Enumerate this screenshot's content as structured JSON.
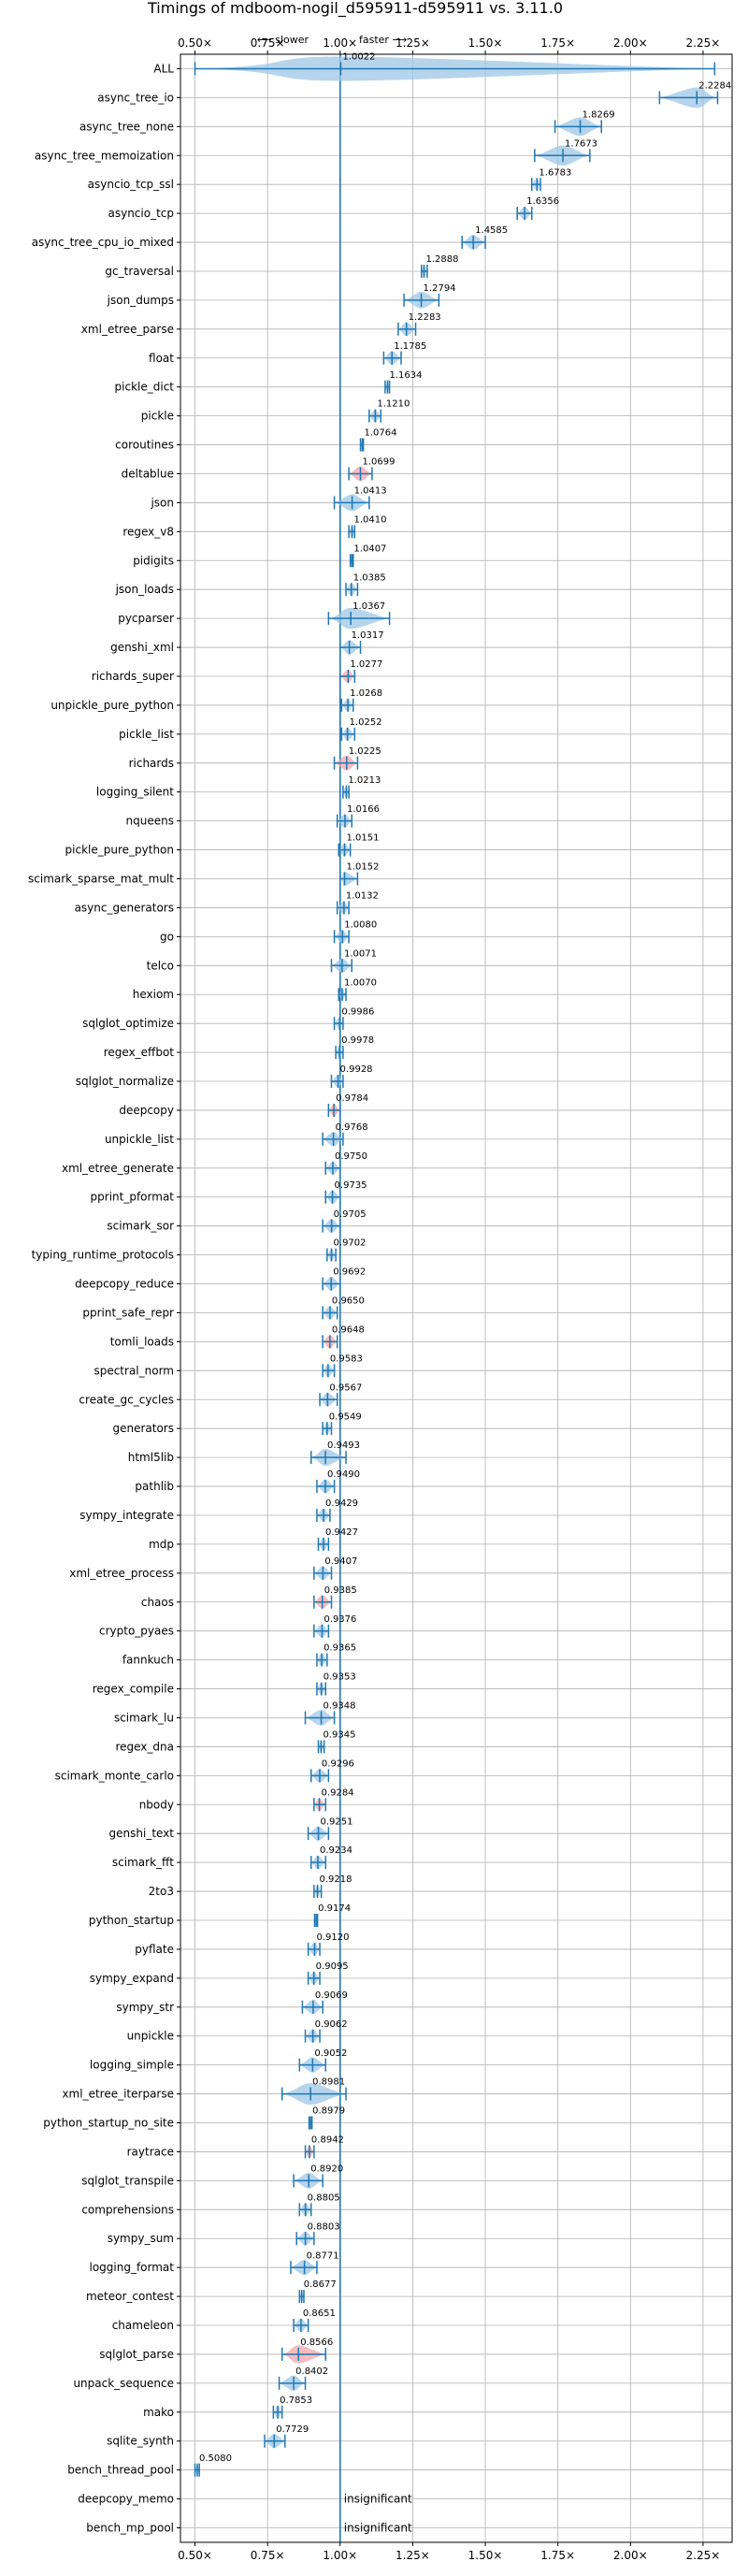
{
  "chart_data": {
    "type": "violin-timing",
    "title": "Timings of mdboom-nogil_d595911-d595911 vs. 3.11.0",
    "direction_slower": "⟵ slower",
    "direction_faster": "faster ⟶",
    "x_ticks": [
      "0.50×",
      "0.75×",
      "1.00×",
      "1.25×",
      "1.50×",
      "1.75×",
      "2.00×",
      "2.25×"
    ],
    "x_tick_values": [
      0.5,
      0.75,
      1.0,
      1.25,
      1.5,
      1.75,
      2.0,
      2.25
    ],
    "xlim": [
      0.45,
      2.35
    ],
    "reference_line": 1.0,
    "grid": true,
    "insignificant_label": "insignificant",
    "benchmarks": [
      {
        "name": "ALL",
        "value": 1.0022,
        "low": 0.5,
        "high": 2.29,
        "label": "1.0022"
      },
      {
        "name": "async_tree_io",
        "value": 2.2284,
        "low": 2.1,
        "high": 2.3,
        "label": "2.2284"
      },
      {
        "name": "async_tree_none",
        "value": 1.8269,
        "low": 1.74,
        "high": 1.9,
        "label": "1.8269"
      },
      {
        "name": "async_tree_memoization",
        "value": 1.7673,
        "low": 1.67,
        "high": 1.86,
        "label": "1.7673"
      },
      {
        "name": "asyncio_tcp_ssl",
        "value": 1.6783,
        "low": 1.66,
        "high": 1.69,
        "label": "1.6783"
      },
      {
        "name": "asyncio_tcp",
        "value": 1.6356,
        "low": 1.61,
        "high": 1.66,
        "label": "1.6356"
      },
      {
        "name": "async_tree_cpu_io_mixed",
        "value": 1.4585,
        "low": 1.42,
        "high": 1.5,
        "label": "1.4585"
      },
      {
        "name": "gc_traversal",
        "value": 1.2888,
        "low": 1.28,
        "high": 1.3,
        "label": "1.2888"
      },
      {
        "name": "json_dumps",
        "value": 1.2794,
        "low": 1.22,
        "high": 1.34,
        "label": "1.2794"
      },
      {
        "name": "xml_etree_parse",
        "value": 1.2283,
        "low": 1.2,
        "high": 1.26,
        "label": "1.2283"
      },
      {
        "name": "float",
        "value": 1.1785,
        "low": 1.15,
        "high": 1.21,
        "label": "1.1785"
      },
      {
        "name": "pickle_dict",
        "value": 1.1634,
        "low": 1.155,
        "high": 1.17,
        "label": "1.1634"
      },
      {
        "name": "pickle",
        "value": 1.121,
        "low": 1.1,
        "high": 1.14,
        "label": "1.1210"
      },
      {
        "name": "coroutines",
        "value": 1.0764,
        "low": 1.07,
        "high": 1.08,
        "label": "1.0764"
      },
      {
        "name": "deltablue",
        "value": 1.0699,
        "low": 1.03,
        "high": 1.11,
        "label": "1.0699"
      },
      {
        "name": "json",
        "value": 1.0413,
        "low": 0.98,
        "high": 1.1,
        "label": "1.0413"
      },
      {
        "name": "regex_v8",
        "value": 1.041,
        "low": 1.03,
        "high": 1.05,
        "label": "1.0410"
      },
      {
        "name": "pidigits",
        "value": 1.0407,
        "low": 1.035,
        "high": 1.045,
        "label": "1.0407"
      },
      {
        "name": "json_loads",
        "value": 1.0385,
        "low": 1.02,
        "high": 1.06,
        "label": "1.0385"
      },
      {
        "name": "pycparser",
        "value": 1.0367,
        "low": 0.96,
        "high": 1.17,
        "label": "1.0367"
      },
      {
        "name": "genshi_xml",
        "value": 1.0317,
        "low": 1.0,
        "high": 1.07,
        "label": "1.0317"
      },
      {
        "name": "richards_super",
        "value": 1.0277,
        "low": 1.0,
        "high": 1.05,
        "label": "1.0277"
      },
      {
        "name": "unpickle_pure_python",
        "value": 1.0268,
        "low": 1.005,
        "high": 1.045,
        "label": "1.0268"
      },
      {
        "name": "pickle_list",
        "value": 1.0252,
        "low": 1.005,
        "high": 1.05,
        "label": "1.0252"
      },
      {
        "name": "richards",
        "value": 1.0225,
        "low": 0.98,
        "high": 1.06,
        "label": "1.0225"
      },
      {
        "name": "logging_silent",
        "value": 1.0213,
        "low": 1.01,
        "high": 1.03,
        "label": "1.0213"
      },
      {
        "name": "nqueens",
        "value": 1.0166,
        "low": 0.99,
        "high": 1.04,
        "label": "1.0166"
      },
      {
        "name": "pickle_pure_python",
        "value": 1.0151,
        "low": 0.995,
        "high": 1.035,
        "label": "1.0151"
      },
      {
        "name": "scimark_sparse_mat_mult",
        "value": 1.0152,
        "low": 1.0,
        "high": 1.06,
        "label": "1.0152"
      },
      {
        "name": "async_generators",
        "value": 1.0132,
        "low": 0.99,
        "high": 1.03,
        "label": "1.0132"
      },
      {
        "name": "go",
        "value": 1.008,
        "low": 0.98,
        "high": 1.03,
        "label": "1.0080"
      },
      {
        "name": "telco",
        "value": 1.0071,
        "low": 0.97,
        "high": 1.04,
        "label": "1.0071"
      },
      {
        "name": "hexiom",
        "value": 1.007,
        "low": 0.995,
        "high": 1.02,
        "label": "1.0070"
      },
      {
        "name": "sqlglot_optimize",
        "value": 0.9986,
        "low": 0.98,
        "high": 1.01,
        "label": "0.9986"
      },
      {
        "name": "regex_effbot",
        "value": 0.9978,
        "low": 0.985,
        "high": 1.01,
        "label": "0.9978"
      },
      {
        "name": "sqlglot_normalize",
        "value": 0.9928,
        "low": 0.97,
        "high": 1.01,
        "label": "0.9928"
      },
      {
        "name": "deepcopy",
        "value": 0.9784,
        "low": 0.96,
        "high": 1.0,
        "label": "0.9784"
      },
      {
        "name": "unpickle_list",
        "value": 0.9768,
        "low": 0.94,
        "high": 1.01,
        "label": "0.9768"
      },
      {
        "name": "xml_etree_generate",
        "value": 0.975,
        "low": 0.95,
        "high": 1.0,
        "label": "0.9750"
      },
      {
        "name": "pprint_pformat",
        "value": 0.9735,
        "low": 0.95,
        "high": 1.0,
        "label": "0.9735"
      },
      {
        "name": "scimark_sor",
        "value": 0.9705,
        "low": 0.94,
        "high": 1.0,
        "label": "0.9705"
      },
      {
        "name": "typing_runtime_protocols",
        "value": 0.9702,
        "low": 0.955,
        "high": 0.985,
        "label": "0.9702"
      },
      {
        "name": "deepcopy_reduce",
        "value": 0.9692,
        "low": 0.94,
        "high": 1.0,
        "label": "0.9692"
      },
      {
        "name": "pprint_safe_repr",
        "value": 0.965,
        "low": 0.94,
        "high": 0.99,
        "label": "0.9650"
      },
      {
        "name": "tomli_loads",
        "value": 0.9648,
        "low": 0.94,
        "high": 0.99,
        "label": "0.9648"
      },
      {
        "name": "spectral_norm",
        "value": 0.9583,
        "low": 0.94,
        "high": 0.98,
        "label": "0.9583"
      },
      {
        "name": "create_gc_cycles",
        "value": 0.9567,
        "low": 0.93,
        "high": 0.99,
        "label": "0.9567"
      },
      {
        "name": "generators",
        "value": 0.9549,
        "low": 0.94,
        "high": 0.97,
        "label": "0.9549"
      },
      {
        "name": "html5lib",
        "value": 0.9493,
        "low": 0.9,
        "high": 1.02,
        "label": "0.9493"
      },
      {
        "name": "pathlib",
        "value": 0.949,
        "low": 0.92,
        "high": 0.98,
        "label": "0.9490"
      },
      {
        "name": "sympy_integrate",
        "value": 0.9429,
        "low": 0.92,
        "high": 0.965,
        "label": "0.9429"
      },
      {
        "name": "mdp",
        "value": 0.9427,
        "low": 0.925,
        "high": 0.96,
        "label": "0.9427"
      },
      {
        "name": "xml_etree_process",
        "value": 0.9407,
        "low": 0.91,
        "high": 0.97,
        "label": "0.9407"
      },
      {
        "name": "chaos",
        "value": 0.9385,
        "low": 0.91,
        "high": 0.97,
        "label": "0.9385"
      },
      {
        "name": "crypto_pyaes",
        "value": 0.9376,
        "low": 0.91,
        "high": 0.96,
        "label": "0.9376"
      },
      {
        "name": "fannkuch",
        "value": 0.9365,
        "low": 0.92,
        "high": 0.955,
        "label": "0.9365"
      },
      {
        "name": "regex_compile",
        "value": 0.9353,
        "low": 0.92,
        "high": 0.95,
        "label": "0.9353"
      },
      {
        "name": "scimark_lu",
        "value": 0.9348,
        "low": 0.88,
        "high": 0.98,
        "label": "0.9348"
      },
      {
        "name": "regex_dna",
        "value": 0.9345,
        "low": 0.925,
        "high": 0.945,
        "label": "0.9345"
      },
      {
        "name": "scimark_monte_carlo",
        "value": 0.9296,
        "low": 0.9,
        "high": 0.96,
        "label": "0.9296"
      },
      {
        "name": "nbody",
        "value": 0.9284,
        "low": 0.91,
        "high": 0.95,
        "label": "0.9284"
      },
      {
        "name": "genshi_text",
        "value": 0.9251,
        "low": 0.89,
        "high": 0.96,
        "label": "0.9251"
      },
      {
        "name": "scimark_fft",
        "value": 0.9234,
        "low": 0.9,
        "high": 0.95,
        "label": "0.9234"
      },
      {
        "name": "2to3",
        "value": 0.9218,
        "low": 0.91,
        "high": 0.935,
        "label": "0.9218"
      },
      {
        "name": "python_startup",
        "value": 0.9174,
        "low": 0.912,
        "high": 0.922,
        "label": "0.9174"
      },
      {
        "name": "pyflate",
        "value": 0.912,
        "low": 0.89,
        "high": 0.93,
        "label": "0.9120"
      },
      {
        "name": "sympy_expand",
        "value": 0.9095,
        "low": 0.89,
        "high": 0.93,
        "label": "0.9095"
      },
      {
        "name": "sympy_str",
        "value": 0.9069,
        "low": 0.87,
        "high": 0.94,
        "label": "0.9069"
      },
      {
        "name": "unpickle",
        "value": 0.9062,
        "low": 0.88,
        "high": 0.93,
        "label": "0.9062"
      },
      {
        "name": "logging_simple",
        "value": 0.9052,
        "low": 0.86,
        "high": 0.95,
        "label": "0.9052"
      },
      {
        "name": "xml_etree_iterparse",
        "value": 0.8981,
        "low": 0.8,
        "high": 1.02,
        "label": "0.8981"
      },
      {
        "name": "python_startup_no_site",
        "value": 0.8979,
        "low": 0.893,
        "high": 0.903,
        "label": "0.8979"
      },
      {
        "name": "raytrace",
        "value": 0.8942,
        "low": 0.88,
        "high": 0.91,
        "label": "0.8942"
      },
      {
        "name": "sqlglot_transpile",
        "value": 0.892,
        "low": 0.84,
        "high": 0.94,
        "label": "0.8920"
      },
      {
        "name": "comprehensions",
        "value": 0.8805,
        "low": 0.86,
        "high": 0.9,
        "label": "0.8805"
      },
      {
        "name": "sympy_sum",
        "value": 0.8803,
        "low": 0.85,
        "high": 0.91,
        "label": "0.8803"
      },
      {
        "name": "logging_format",
        "value": 0.8771,
        "low": 0.83,
        "high": 0.92,
        "label": "0.8771"
      },
      {
        "name": "meteor_contest",
        "value": 0.8677,
        "low": 0.86,
        "high": 0.875,
        "label": "0.8677"
      },
      {
        "name": "chameleon",
        "value": 0.8651,
        "low": 0.84,
        "high": 0.89,
        "label": "0.8651"
      },
      {
        "name": "sqlglot_parse",
        "value": 0.8566,
        "low": 0.8,
        "high": 0.95,
        "label": "0.8566"
      },
      {
        "name": "unpack_sequence",
        "value": 0.8402,
        "low": 0.79,
        "high": 0.88,
        "label": "0.8402"
      },
      {
        "name": "mako",
        "value": 0.7853,
        "low": 0.77,
        "high": 0.8,
        "label": "0.7853"
      },
      {
        "name": "sqlite_synth",
        "value": 0.7729,
        "low": 0.74,
        "high": 0.81,
        "label": "0.7729"
      },
      {
        "name": "bench_thread_pool",
        "value": 0.508,
        "low": 0.5,
        "high": 0.515,
        "label": "0.5080"
      },
      {
        "name": "deepcopy_memo",
        "value": null,
        "label": "insignificant"
      },
      {
        "name": "bench_mp_pool",
        "value": null,
        "label": "insignificant"
      }
    ],
    "colors": {
      "line": "#1f77b4",
      "violin": "#9ec7e6",
      "violin_red": "#f4a6a8",
      "grid": "#b0b0b0",
      "axis": "#000000"
    }
  }
}
